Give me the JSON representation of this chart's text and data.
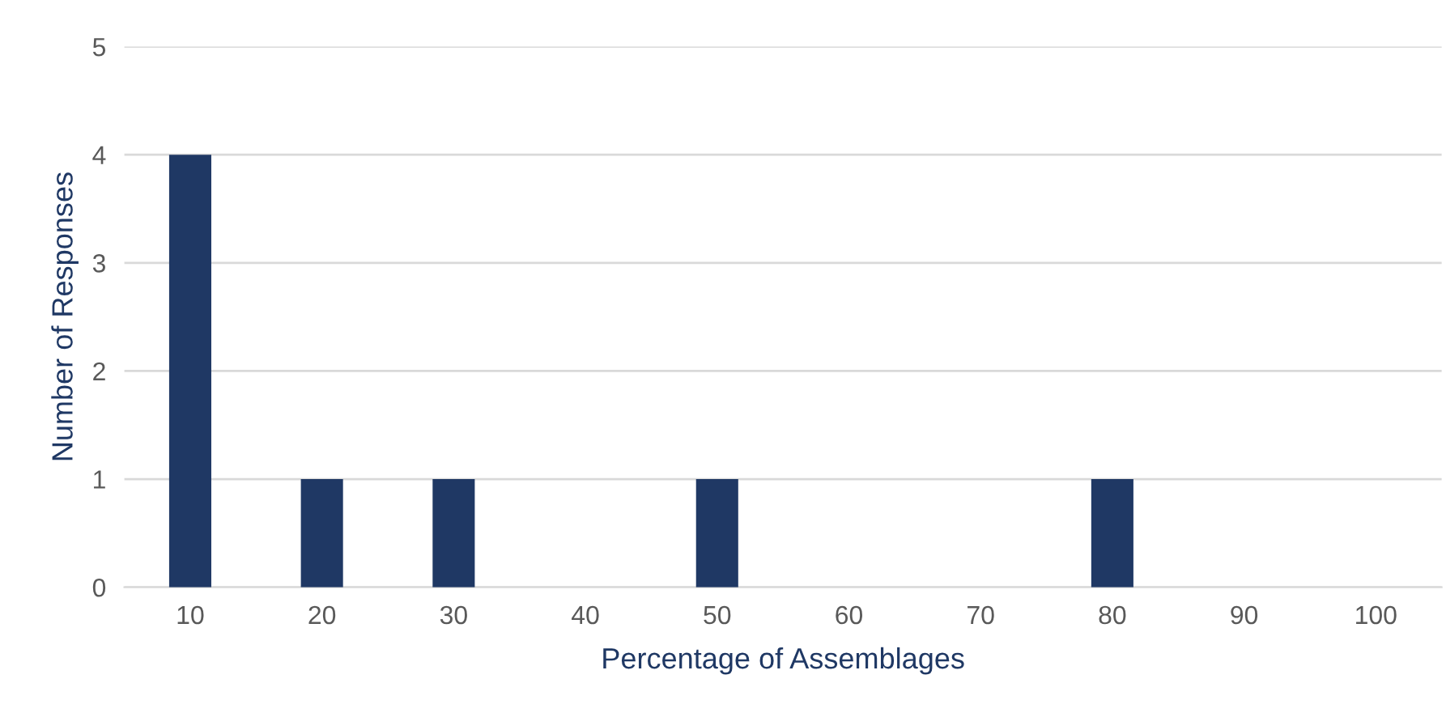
{
  "chart_data": {
    "type": "bar",
    "xlabel": "Percentage of Assemblages",
    "ylabel": "Number of Responses",
    "categories": [
      "10",
      "20",
      "30",
      "40",
      "50",
      "60",
      "70",
      "80",
      "90",
      "100"
    ],
    "values": [
      4,
      1,
      1,
      0,
      1,
      0,
      0,
      1,
      0,
      0
    ],
    "color": "#1f3864",
    "ylim": [
      0,
      5
    ],
    "yticks": [
      0,
      1,
      2,
      3,
      4,
      5
    ],
    "grid": "y",
    "legend": false
  }
}
